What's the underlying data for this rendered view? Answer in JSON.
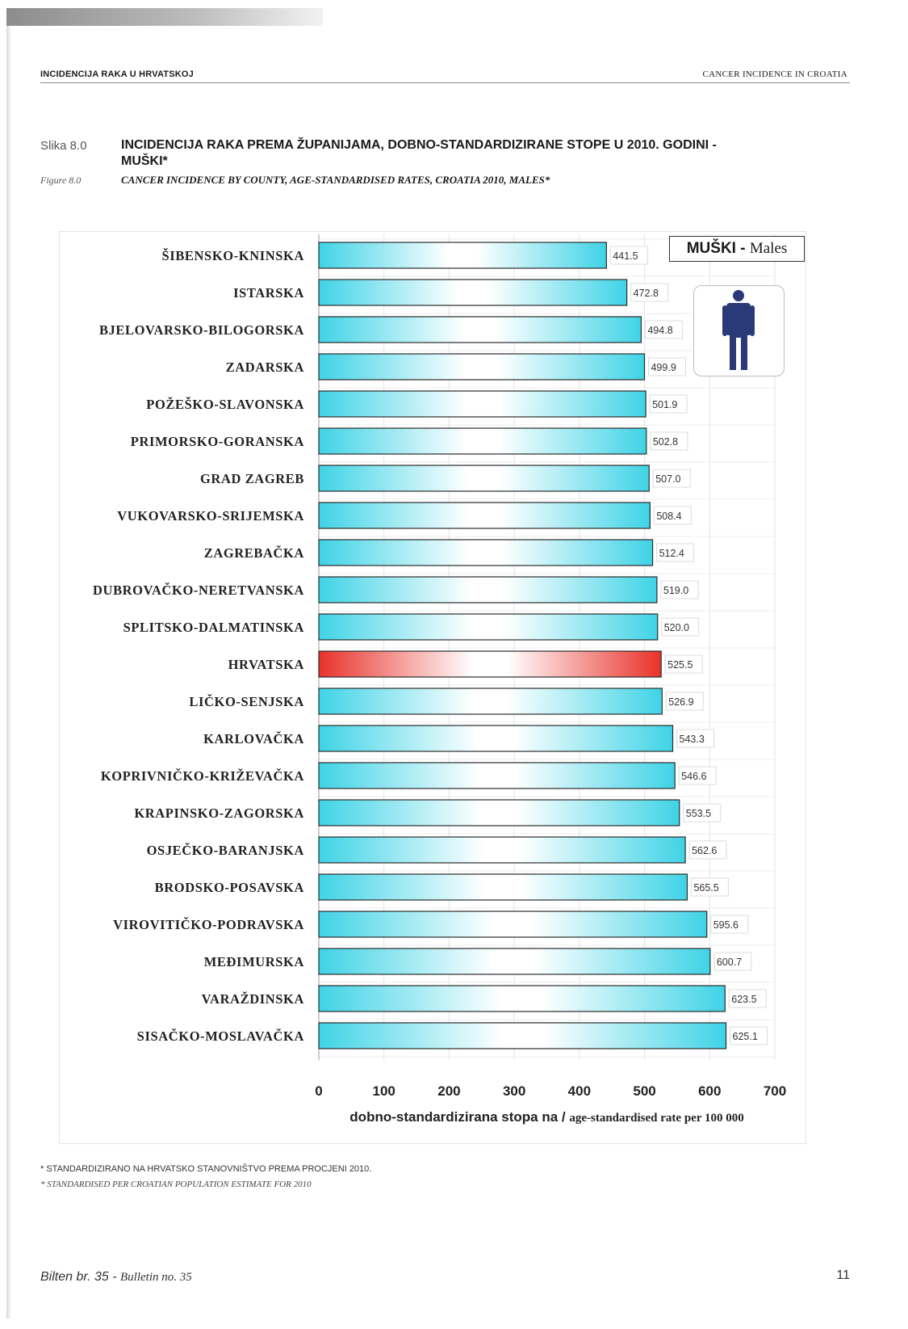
{
  "header": {
    "left": "INCIDENCIJA RAKA U HRVATSKOJ",
    "right": "CANCER INCIDENCE IN CROATIA"
  },
  "figure": {
    "number_hr": "Slika 8.0",
    "title_hr": "INCIDENCIJA RAKA PREMA ŽUPANIJAMA, DOBNO-STANDARDIZIRANE STOPE U 2010. GODINI - MUŠKI*",
    "number_en": "Figure 8.0",
    "title_en": "CANCER INCIDENCE BY COUNTY, AGE-STANDARDISED RATES, CROATIA 2010, MALES*"
  },
  "legend": {
    "label_hr": "MUŠKI",
    "separator": " - ",
    "label_en": "Males",
    "icon": "male-person-icon"
  },
  "chart_data": {
    "type": "bar",
    "orientation": "horizontal",
    "categories": [
      "ŠIBENSKO-KNINSKA",
      "ISTARSKA",
      "BJELOVARSKO-BILOGORSKA",
      "ZADARSKA",
      "POŽEŠKO-SLAVONSKA",
      "PRIMORSKO-GORANSKA",
      "GRAD ZAGREB",
      "VUKOVARSKO-SRIJEMSKA",
      "ZAGREBAČKA",
      "DUBROVAČKO-NERETVANSKA",
      "SPLITSKO-DALMATINSKA",
      "HRVATSKA",
      "LIČKO-SENJSKA",
      "KARLOVAČKA",
      "KOPRIVNIČKO-KRIŽEVAČKA",
      "KRAPINSKO-ZAGORSKA",
      "OSJEČKO-BARANJSKA",
      "BRODSKO-POSAVSKA",
      "VIROVITIČKO-PODRAVSKA",
      "MEĐIMURSKA",
      "VARAŽDINSKA",
      "SISAČKO-MOSLAVAČKA"
    ],
    "values": [
      441.5,
      472.8,
      494.8,
      499.9,
      501.9,
      502.8,
      507.0,
      508.4,
      512.4,
      519.0,
      520.0,
      525.5,
      526.9,
      543.3,
      546.6,
      553.5,
      562.6,
      565.5,
      595.6,
      600.7,
      623.5,
      625.1
    ],
    "value_labels": [
      "441.5",
      "472.8",
      "494.8",
      "499.9",
      "501.9",
      "502.8",
      "507.0",
      "508.4",
      "512.4",
      "519.0",
      "520.0",
      "525.5",
      "526.9",
      "543.3",
      "546.6",
      "553.5",
      "562.6",
      "565.5",
      "595.6",
      "600.7",
      "623.5",
      "625.1"
    ],
    "highlight": "HRVATSKA",
    "colors": {
      "bar": "#3fd3e6",
      "highlight": "#e8322a",
      "grid": "#e3e3e3"
    },
    "xlim": [
      0,
      700
    ],
    "xticks": [
      "0",
      "100",
      "200",
      "300",
      "400",
      "500",
      "600",
      "700"
    ],
    "xlabel_hr": "dobno-standardizirana stopa na / ",
    "xlabel_en": "age-standardised rate per 100 000",
    "grid": true
  },
  "footnotes": {
    "hr": "* STANDARDIZIRANO NA HRVATSKO STANOVNIŠTVO PREMA PROCJENI 2010.",
    "en": "* STANDARDISED PER CROATIAN POPULATION ESTIMATE FOR 2010"
  },
  "footer": {
    "left_hr": "Bilten br. 35 - ",
    "left_en": "Bulletin no. 35",
    "page": "11"
  }
}
